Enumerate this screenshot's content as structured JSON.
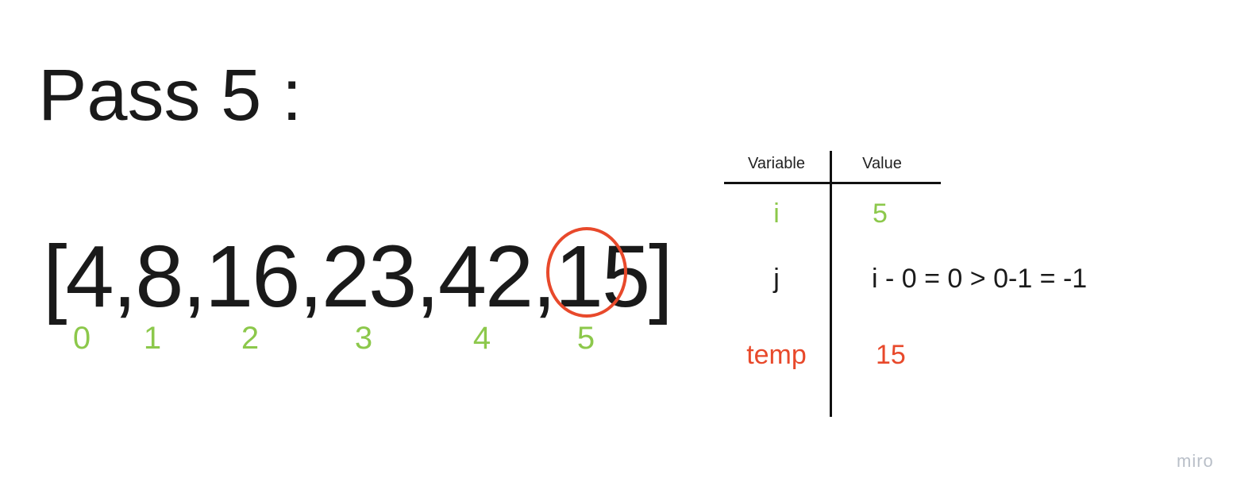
{
  "title": "Pass 5 :",
  "array": {
    "text": "[4,8,16,23,42,15]",
    "indices": [
      "0",
      "1",
      "2",
      "3",
      "4",
      "5"
    ],
    "highlighted_index": 5
  },
  "table": {
    "headers": [
      "Variable",
      "Value"
    ],
    "rows": [
      {
        "name": "i",
        "value": "5"
      },
      {
        "name": "j",
        "value": "i - 0 = 0 > 0-1 = -1"
      },
      {
        "name": "temp",
        "value": "15"
      }
    ]
  },
  "watermark": "miro",
  "colors": {
    "index_green": "#8cc84b",
    "highlight_red": "#e8492b",
    "text_dark": "#1a1a1a"
  }
}
